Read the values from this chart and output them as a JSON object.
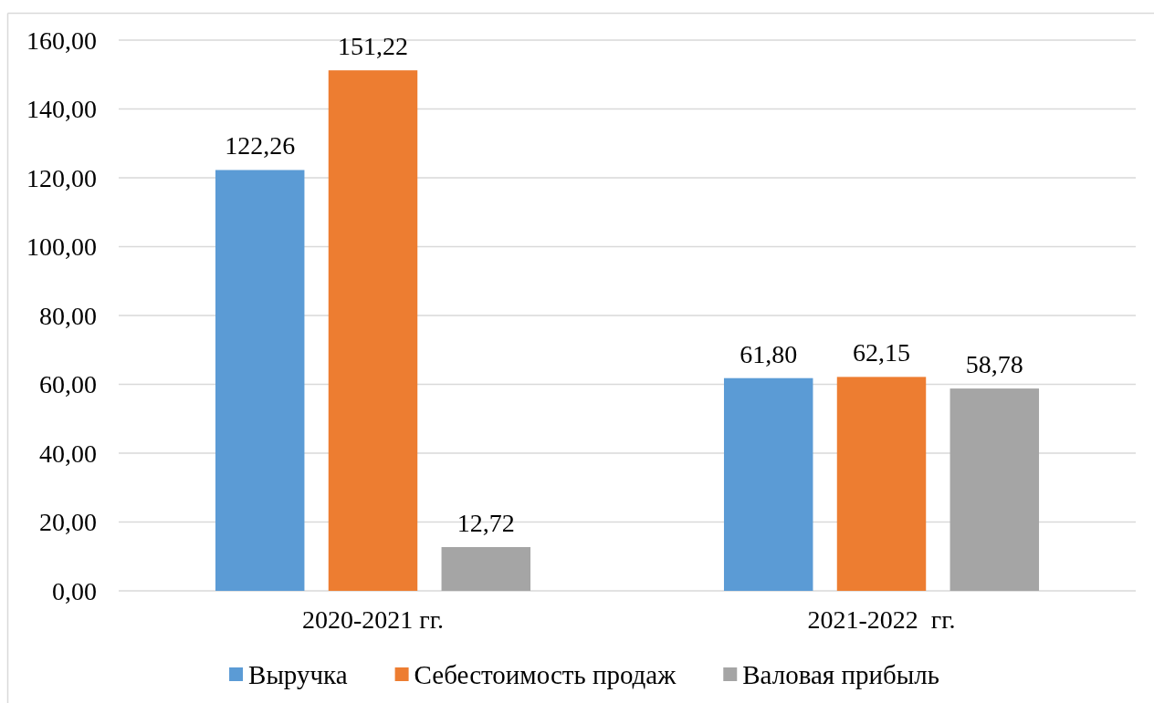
{
  "chart_data": {
    "type": "bar",
    "categories": [
      "2020-2021 гг.",
      "2021-2022  гг."
    ],
    "series": [
      {
        "name": "Выручка",
        "color": "#5b9bd5",
        "values": [
          122.26,
          61.8
        ],
        "value_labels": [
          "122,26",
          "61,80"
        ]
      },
      {
        "name": "Себестоимость продаж",
        "color": "#ed7d31",
        "values": [
          151.22,
          62.15
        ],
        "value_labels": [
          "151,22",
          "62,15"
        ]
      },
      {
        "name": "Валовая прибыль",
        "color": "#a5a5a5",
        "values": [
          12.72,
          58.78
        ],
        "value_labels": [
          "12,72",
          "58,78"
        ]
      }
    ],
    "ylim": [
      0,
      160
    ],
    "yticks": [
      {
        "value": 0,
        "label": "0,00"
      },
      {
        "value": 20,
        "label": "20,00"
      },
      {
        "value": 40,
        "label": "40,00"
      },
      {
        "value": 60,
        "label": "60,00"
      },
      {
        "value": 80,
        "label": "80,00"
      },
      {
        "value": 100,
        "label": "100,00"
      },
      {
        "value": 120,
        "label": "120,00"
      },
      {
        "value": 140,
        "label": "140,00"
      },
      {
        "value": 160,
        "label": "160,00"
      }
    ],
    "grid": "y",
    "legend": "bottom"
  }
}
